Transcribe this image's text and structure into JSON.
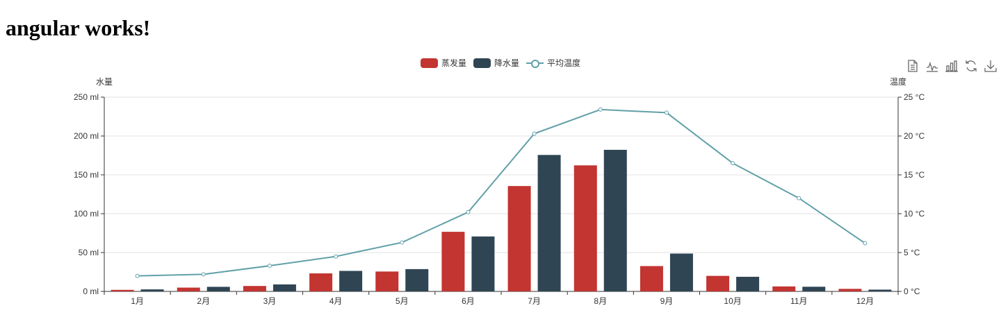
{
  "page": {
    "heading": "angular works!"
  },
  "legend": {
    "items": [
      {
        "label": "蒸发量",
        "color": "#c23531"
      },
      {
        "label": "降水量",
        "color": "#2f4554"
      },
      {
        "label": "平均温度",
        "color": "#61a0a8"
      }
    ]
  },
  "toolbox": [
    "data-view-icon",
    "line-chart-icon",
    "bar-chart-icon",
    "restore-icon",
    "download-icon"
  ],
  "chart_data": {
    "type": "bar",
    "categories": [
      "1月",
      "2月",
      "3月",
      "4月",
      "5月",
      "6月",
      "7月",
      "8月",
      "9月",
      "10月",
      "11月",
      "12月"
    ],
    "series": [
      {
        "name": "蒸发量",
        "type": "bar",
        "color": "#c23531",
        "values": [
          2.0,
          4.9,
          7.0,
          23.2,
          25.6,
          76.7,
          135.6,
          162.2,
          32.6,
          20.0,
          6.4,
          3.3
        ]
      },
      {
        "name": "降水量",
        "type": "bar",
        "color": "#2f4554",
        "values": [
          2.6,
          5.9,
          9.0,
          26.4,
          28.7,
          70.7,
          175.6,
          182.2,
          48.7,
          18.8,
          6.0,
          2.3
        ]
      },
      {
        "name": "平均温度",
        "type": "line",
        "axis": "right",
        "color": "#61a0a8",
        "values": [
          2.0,
          2.2,
          3.3,
          4.5,
          6.3,
          10.2,
          20.3,
          23.4,
          23.0,
          16.5,
          12.0,
          6.2
        ]
      }
    ],
    "ylabel_left": "水量",
    "ylabel_right": "温度",
    "ylim_left": [
      0,
      250
    ],
    "ylim_right": [
      0,
      25
    ],
    "yticks_left": [
      "0 ml",
      "50 ml",
      "100 ml",
      "150 ml",
      "200 ml",
      "250 ml"
    ],
    "yticks_right": [
      "0 °C",
      "5 °C",
      "10 °C",
      "15 °C",
      "20 °C",
      "25 °C"
    ],
    "grid": true,
    "legend_position": "top-center"
  }
}
